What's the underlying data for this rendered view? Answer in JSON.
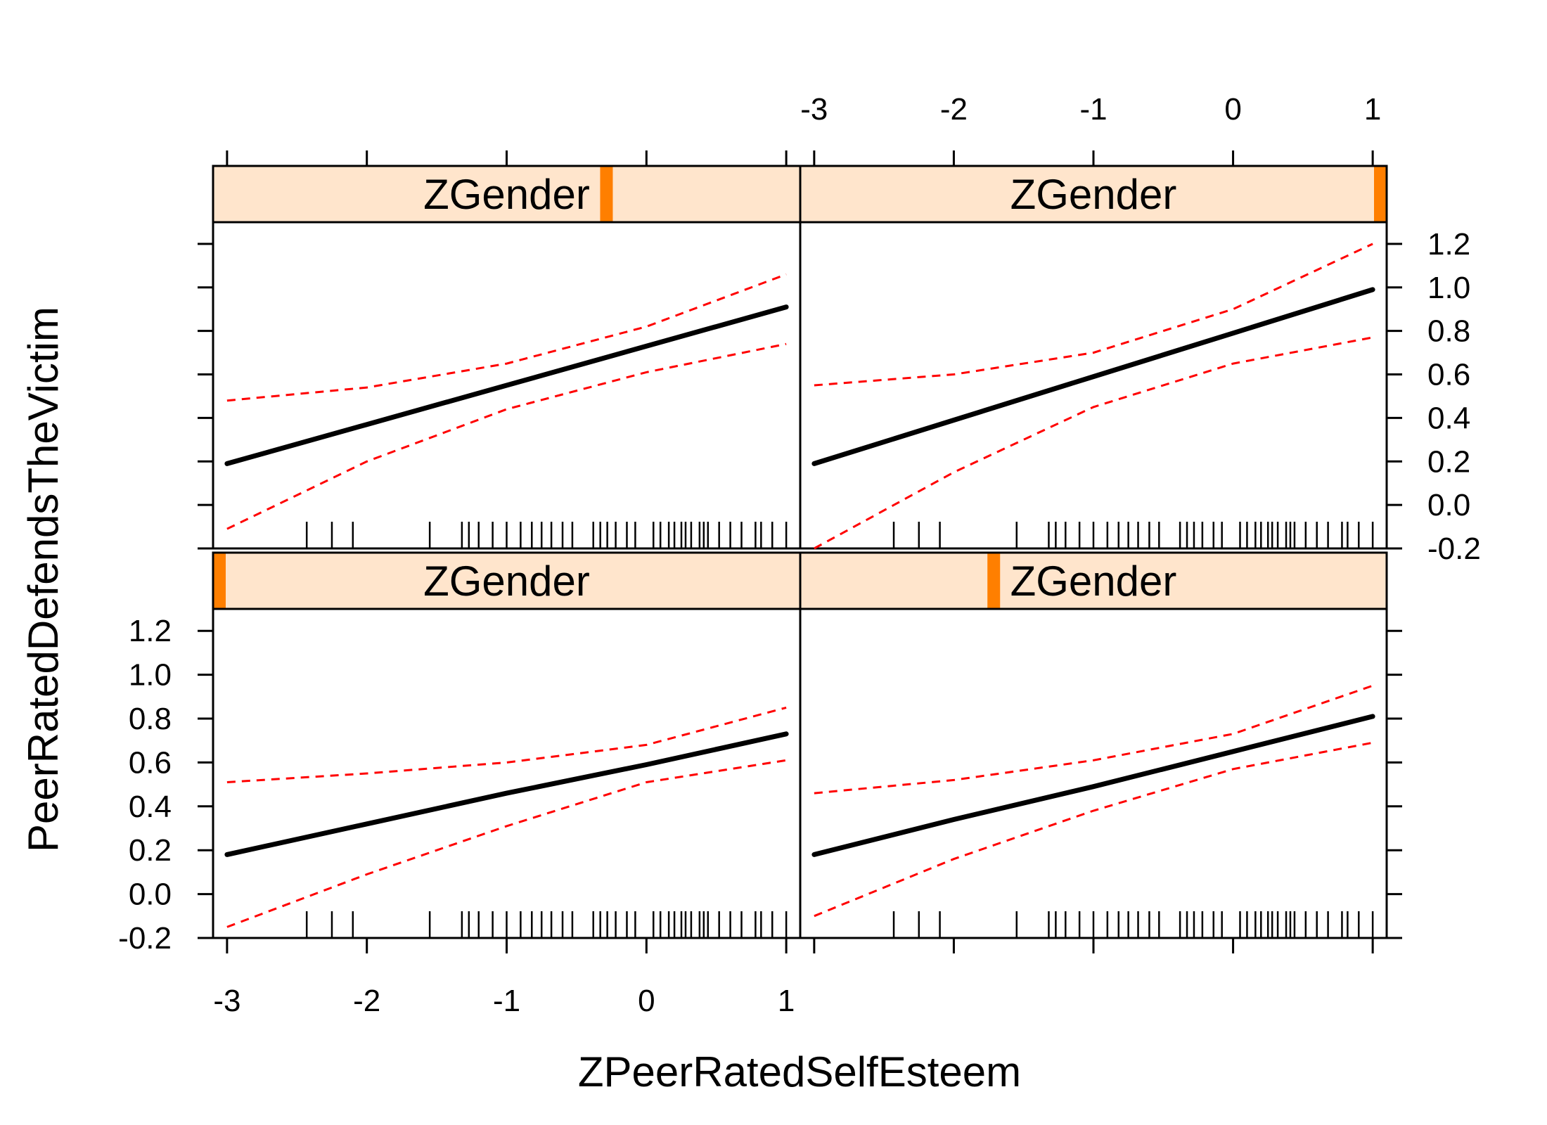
{
  "chart_data": {
    "type": "line",
    "layout": "2x2 lattice",
    "xlabel": "ZPeerRatedSelfEsteem",
    "ylabel": "PeerRatedDefendsTheVictim",
    "xlim": [
      -3.1,
      1.1
    ],
    "ylim": [
      -0.2,
      1.3
    ],
    "x_ticks": [
      -3,
      -2,
      -1,
      0,
      1
    ],
    "x_tick_labels": [
      "-3",
      "-2",
      "-1",
      "0",
      "1"
    ],
    "y_ticks": [
      -0.2,
      0.0,
      0.2,
      0.4,
      0.6,
      0.8,
      1.0,
      1.2
    ],
    "y_tick_labels": [
      "-0.2",
      "0.0",
      "0.2",
      "0.4",
      "0.6",
      "0.8",
      "1.0",
      "1.2"
    ],
    "line_colors": {
      "fit": "#000000",
      "ci": "#ff0000",
      "strip_bg": "#ffe5cc",
      "strip_marker": "#ff7f00"
    },
    "rug_x": [
      -2.43,
      -2.25,
      -2.1,
      -1.55,
      -1.32,
      -1.27,
      -1.2,
      -1.1,
      -1.0,
      -0.9,
      -0.82,
      -0.75,
      -0.68,
      -0.6,
      -0.53,
      -0.38,
      -0.33,
      -0.28,
      -0.22,
      -0.14,
      -0.08,
      0.05,
      0.1,
      0.16,
      0.2,
      0.25,
      0.28,
      0.32,
      0.38,
      0.41,
      0.44,
      0.52,
      0.6,
      0.68,
      0.78,
      0.82,
      0.9,
      1.0
    ],
    "panels": [
      {
        "position": "top-left",
        "strip": "ZGender",
        "strip_level": 0.67,
        "x": [
          -3,
          -2,
          -1,
          0,
          1
        ],
        "fit": [
          0.19,
          0.37,
          0.55,
          0.73,
          0.91
        ],
        "lower": [
          -0.11,
          0.2,
          0.44,
          0.61,
          0.74
        ],
        "upper": [
          0.48,
          0.54,
          0.65,
          0.82,
          1.06
        ]
      },
      {
        "position": "top-right",
        "strip": "ZGender",
        "strip_level": 0.99,
        "x": [
          -3,
          -2,
          -1,
          0,
          1
        ],
        "fit": [
          0.19,
          0.39,
          0.59,
          0.79,
          0.99
        ],
        "lower": [
          -0.2,
          0.15,
          0.45,
          0.65,
          0.77
        ],
        "upper": [
          0.55,
          0.6,
          0.7,
          0.9,
          1.2
        ]
      },
      {
        "position": "bottom-left",
        "strip": "ZGender",
        "strip_level": 0.0,
        "x": [
          -3,
          -2,
          -1,
          0,
          1
        ],
        "fit": [
          0.18,
          0.32,
          0.46,
          0.59,
          0.73
        ],
        "lower": [
          -0.15,
          0.09,
          0.31,
          0.51,
          0.61
        ],
        "upper": [
          0.51,
          0.55,
          0.6,
          0.68,
          0.85
        ]
      },
      {
        "position": "bottom-right",
        "strip": "ZGender",
        "strip_level": 0.33,
        "x": [
          -3,
          -2,
          -1,
          0,
          1
        ],
        "fit": [
          0.18,
          0.34,
          0.49,
          0.65,
          0.81
        ],
        "lower": [
          -0.1,
          0.16,
          0.38,
          0.57,
          0.69
        ],
        "upper": [
          0.46,
          0.52,
          0.61,
          0.73,
          0.95
        ]
      }
    ]
  }
}
